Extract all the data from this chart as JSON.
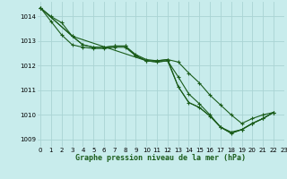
{
  "title": "Graphe pression niveau de la mer (hPa)",
  "background_color": "#c8ecec",
  "grid_color": "#aad4d4",
  "line_color": "#1a5c1a",
  "marker_color": "#1a5c1a",
  "xlim": [
    -0.3,
    23
  ],
  "ylim": [
    1008.7,
    1014.6
  ],
  "yticks": [
    1009,
    1010,
    1011,
    1012,
    1013,
    1014
  ],
  "xticks": [
    0,
    1,
    2,
    3,
    4,
    5,
    6,
    7,
    8,
    9,
    10,
    11,
    12,
    13,
    14,
    15,
    16,
    17,
    18,
    19,
    20,
    21,
    22,
    23
  ],
  "series": [
    {
      "x": [
        0,
        1,
        2,
        3,
        4,
        5,
        6,
        7,
        8,
        9,
        10,
        11,
        12,
        13,
        14,
        15,
        16,
        17,
        18,
        19,
        20,
        21,
        22
      ],
      "y": [
        1014.35,
        1014.0,
        1013.75,
        1013.2,
        1012.85,
        1012.75,
        1012.75,
        1012.8,
        1012.8,
        1012.45,
        1012.25,
        1012.2,
        1012.25,
        1012.15,
        1011.7,
        1011.3,
        1010.8,
        1010.4,
        1010.0,
        1009.65,
        1009.85,
        1010.0,
        1010.1
      ],
      "has_markers": true
    },
    {
      "x": [
        0,
        1,
        2,
        3,
        4,
        5,
        6,
        7,
        8,
        9,
        10,
        11,
        12,
        13,
        14,
        15,
        16,
        17,
        18,
        19,
        20,
        21,
        22
      ],
      "y": [
        1014.35,
        1013.8,
        1013.25,
        1012.85,
        1012.75,
        1012.7,
        1012.7,
        1012.75,
        1012.75,
        1012.4,
        1012.2,
        1012.15,
        1012.2,
        1011.55,
        1010.85,
        1010.45,
        1010.0,
        1009.5,
        1009.3,
        1009.4,
        1009.65,
        1009.85,
        1010.1
      ],
      "has_markers": true
    },
    {
      "x": [
        0,
        3,
        4,
        5,
        6,
        7,
        8,
        9,
        10,
        11,
        12,
        13,
        14,
        15,
        16,
        17,
        18,
        19,
        20,
        21,
        22
      ],
      "y": [
        1014.35,
        1013.2,
        1012.85,
        1012.75,
        1012.75,
        1012.8,
        1012.8,
        1012.4,
        1012.2,
        1012.2,
        1012.25,
        1011.15,
        1010.5,
        1010.3,
        1009.95,
        1009.5,
        1009.25,
        1009.4,
        1009.65,
        1009.85,
        1010.1
      ],
      "has_markers": true
    },
    {
      "x": [
        0,
        3,
        10,
        11,
        12,
        13,
        14,
        15,
        16,
        17,
        18,
        19,
        20,
        21,
        22
      ],
      "y": [
        1014.35,
        1013.2,
        1012.2,
        1012.15,
        1012.2,
        1011.15,
        1010.5,
        1010.3,
        1009.95,
        1009.5,
        1009.25,
        1009.4,
        1009.65,
        1009.85,
        1010.1
      ],
      "has_markers": false
    }
  ]
}
